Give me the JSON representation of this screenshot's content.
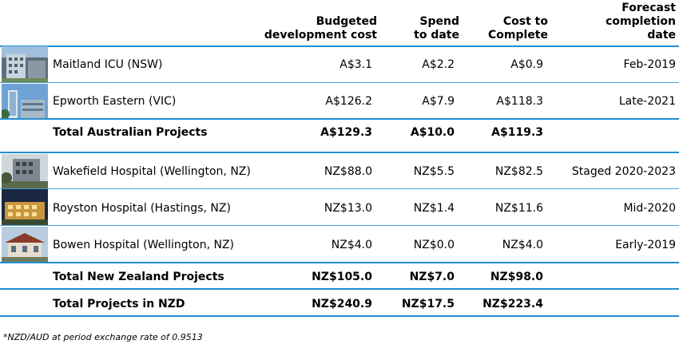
{
  "headers": {
    "budget": [
      "Budgeted",
      "development cost"
    ],
    "spend": [
      "Spend",
      "to date"
    ],
    "cost": [
      "Cost to",
      "Complete"
    ],
    "forecast": [
      "Forecast",
      "completion",
      "date"
    ]
  },
  "rows": [
    {
      "name": "Maitland ICU (NSW)",
      "budget": "A$3.1",
      "spend": "A$2.2",
      "cost": "A$0.9",
      "date": "Feb-2019"
    },
    {
      "name": "Epworth Eastern (VIC)",
      "budget": "A$126.2",
      "spend": "A$7.9",
      "cost": "A$118.3",
      "date": "Late-2021"
    },
    {
      "name": "Total Australian Projects",
      "budget": "A$129.3",
      "spend": "A$10.0",
      "cost": "A$119.3",
      "date": ""
    },
    {
      "name": "Wakefield Hospital (Wellington, NZ)",
      "budget": "NZ$88.0",
      "spend": "NZ$5.5",
      "cost": "NZ$82.5",
      "date": "Staged 2020-2023"
    },
    {
      "name": "Royston Hospital (Hastings, NZ)",
      "budget": "NZ$13.0",
      "spend": "NZ$1.4",
      "cost": "NZ$11.6",
      "date": "Mid-2020"
    },
    {
      "name": "Bowen Hospital (Wellington, NZ)",
      "budget": "NZ$4.0",
      "spend": "NZ$0.0",
      "cost": "NZ$4.0",
      "date": "Early-2019"
    },
    {
      "name": "Total New Zealand Projects",
      "budget": "NZ$105.0",
      "spend": "NZ$7.0",
      "cost": "NZ$98.0",
      "date": ""
    },
    {
      "name": "Total Projects in NZD",
      "budget": "NZ$240.9",
      "spend": "NZ$17.5",
      "cost": "NZ$223.4",
      "date": ""
    }
  ],
  "footnote": "*NZD/AUD at period exchange rate of 0.9513",
  "colors": {
    "rule": "#4aa3d8",
    "rule_strong": "#1f8fd0"
  }
}
